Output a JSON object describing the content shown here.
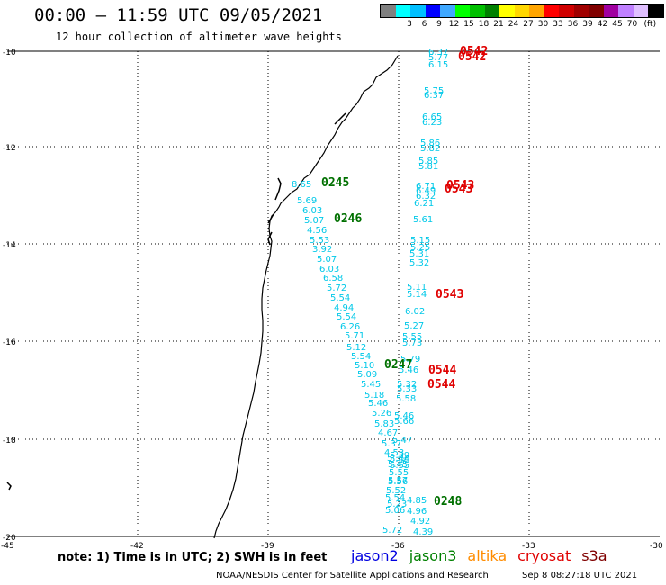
{
  "header": {
    "title": "00:00 – 11:59 UTC 09/05/2021",
    "subtitle": "12 hour collection of altimeter wave heights"
  },
  "color_scale": {
    "unit": "(ft)",
    "swatches": [
      "#808080",
      "#00ffff",
      "#00bfff",
      "#0000ff",
      "#3fa8ff",
      "#00ff00",
      "#00c000",
      "#008000",
      "#ffff00",
      "#ffd700",
      "#ffa500",
      "#ff0000",
      "#d00000",
      "#a00000",
      "#800000",
      "#a000a0",
      "#c080ff",
      "#e0c0ff",
      "#000000"
    ],
    "labels": [
      "3",
      "6",
      "9",
      "12",
      "15",
      "18",
      "21",
      "24",
      "27",
      "30",
      "33",
      "36",
      "39",
      "42",
      "45",
      "70"
    ]
  },
  "axes": {
    "lat_labels": [
      "-10",
      "-12",
      "-14",
      "-16",
      "-18",
      "-20"
    ],
    "lon_labels": [
      "-45",
      "-42",
      "-39",
      "-36",
      "-33",
      "-30"
    ]
  },
  "passes": [
    {
      "label": "0542",
      "color": "#e00000"
    },
    {
      "label": "0542",
      "color": "#e00000"
    },
    {
      "label": "0245",
      "color": "#007000"
    },
    {
      "label": "0543",
      "color": "#e00000"
    },
    {
      "label": "0543",
      "color": "#e00000"
    },
    {
      "label": "0246",
      "color": "#007000"
    },
    {
      "label": "0543",
      "color": "#e00000"
    },
    {
      "label": "0247",
      "color": "#007000"
    },
    {
      "label": "0544",
      "color": "#e00000"
    },
    {
      "label": "0544",
      "color": "#e00000"
    },
    {
      "label": "0248",
      "color": "#007000"
    }
  ],
  "wave_heights": {
    "near_track": [
      "6.37",
      "5.77",
      "6.15",
      "5.75",
      "6.37",
      "6.65",
      "6.23",
      "5.86",
      "5.82",
      "5.85",
      "5.81",
      "6.71",
      "6.49",
      "6.32",
      "6.21",
      "5.61",
      "5.15",
      "5.25",
      "5.31",
      "5.32",
      "5.11",
      "5.14",
      "6.02",
      "5.27",
      "5.55",
      "5.73",
      "5.79",
      "5.46",
      "5.32",
      "5.33",
      "5.58",
      "5.46",
      "5.66",
      "5.47",
      "5.39",
      "5.44",
      "5.55",
      "5.57",
      "5.52",
      "4.85",
      "4.96",
      "4.92",
      "4.39"
    ],
    "diagonal_track": [
      "8.65",
      "5.69",
      "6.03",
      "5.07",
      "4.56",
      "5.53",
      "3.92",
      "5.07",
      "6.03",
      "6.58",
      "5.72",
      "5.54",
      "4.94",
      "5.54",
      "6.26",
      "5.71",
      "5.12",
      "5.54",
      "5.10",
      "5.09",
      "5.45",
      "5.18",
      "5.46",
      "5.26",
      "5.83",
      "4.67",
      "5.37",
      "4.53",
      "5.39",
      "5.45",
      "5.55",
      "5.56",
      "5.54",
      "5.23",
      "5.06",
      "5.72"
    ]
  },
  "note": "note: 1) Time is in UTC; 2) SWH is in feet",
  "satellites": [
    {
      "name": "jason2",
      "color": "#0000e0"
    },
    {
      "name": "jason3",
      "color": "#008000"
    },
    {
      "name": "altika",
      "color": "#ff8c00"
    },
    {
      "name": "cryosat",
      "color": "#e00000"
    },
    {
      "name": "s3a",
      "color": "#800000"
    }
  ],
  "footer": {
    "credit": "NOAA/NESDIS Center for Satellite Applications and Research",
    "timestamp": "Sep  8 08:27:18 UTC 2021"
  }
}
